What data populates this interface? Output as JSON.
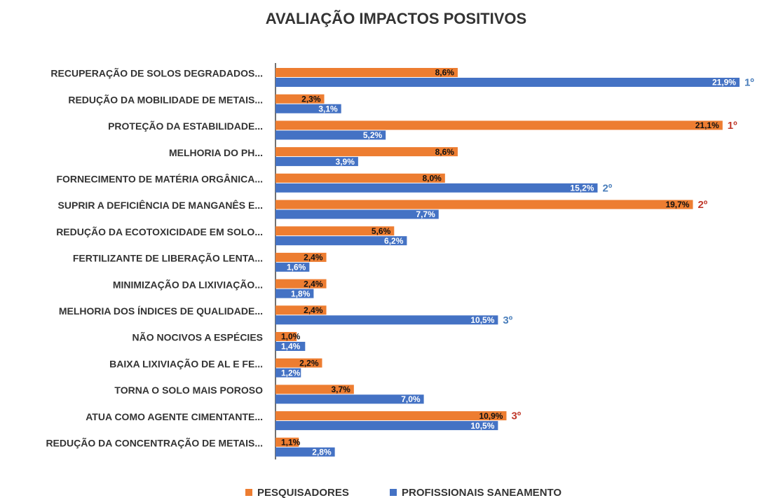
{
  "chart_data": {
    "type": "bar",
    "orientation": "horizontal",
    "title": "AVALIAÇÃO IMPACTOS POSITIVOS",
    "categories": [
      "RECUPERAÇÃO DE SOLOS DEGRADADOS...",
      "REDUÇÃO DA MOBILIDADE DE METAIS...",
      "PROTEÇÃO DA ESTABILIDADE...",
      "MELHORIA DO PH...",
      "FORNECIMENTO DE MATÉRIA ORGÂNICA...",
      "SUPRIR A DEFICIÊNCIA DE MANGANÊS E...",
      "REDUÇÃO DA ECOTOXICIDADE EM SOLO...",
      "FERTILIZANTE DE LIBERAÇÃO LENTA...",
      "MINIMIZAÇÃO DA LIXIVIAÇÃO...",
      "MELHORIA DOS ÍNDICES DE QUALIDADE...",
      "NÃO NOCIVOS A ESPÉCIES",
      "BAIXA LIXIVIAÇÃO DE AL E FE...",
      "TORNA O SOLO MAIS POROSO",
      "ATUA COMO AGENTE CIMENTANTE...",
      "REDUÇÃO DA CONCENTRAÇÃO DE METAIS..."
    ],
    "series": [
      {
        "name": "PESQUISADORES",
        "color": "#ed7d31",
        "values": [
          8.6,
          2.3,
          21.1,
          8.6,
          8.0,
          19.7,
          5.6,
          2.4,
          2.4,
          2.4,
          1.0,
          2.2,
          3.7,
          10.9,
          1.1
        ],
        "value_labels": [
          "8,6%",
          "2,3%",
          "21,1%",
          "8,6%",
          "8,0%",
          "19,7%",
          "5,6%",
          "2,4%",
          "2,4%",
          "2,4%",
          "1,0%",
          "2,2%",
          "3,7%",
          "10,9%",
          "1,1%"
        ],
        "rank_labels": [
          null,
          null,
          "1º",
          null,
          null,
          "2º",
          null,
          null,
          null,
          null,
          null,
          null,
          null,
          "3º",
          null
        ]
      },
      {
        "name": "PROFISSIONAIS SANEAMENTO",
        "color": "#4472c4",
        "values": [
          21.9,
          3.1,
          5.2,
          3.9,
          15.2,
          7.7,
          6.2,
          1.6,
          1.8,
          10.5,
          1.4,
          1.2,
          7.0,
          10.5,
          2.8
        ],
        "value_labels": [
          "21,9%",
          "3,1%",
          "5,2%",
          "3,9%",
          "15,2%",
          "7,7%",
          "6,2%",
          "1,6%",
          "1,8%",
          "10,5%",
          "1,4%",
          "1,2%",
          "7,0%",
          "10,5%",
          "2,8%"
        ],
        "rank_labels": [
          "1º",
          null,
          null,
          null,
          "2º",
          null,
          null,
          null,
          null,
          "3º",
          null,
          null,
          null,
          null,
          null
        ]
      }
    ],
    "xlim": [
      0,
      22
    ],
    "legend": "bottom"
  }
}
